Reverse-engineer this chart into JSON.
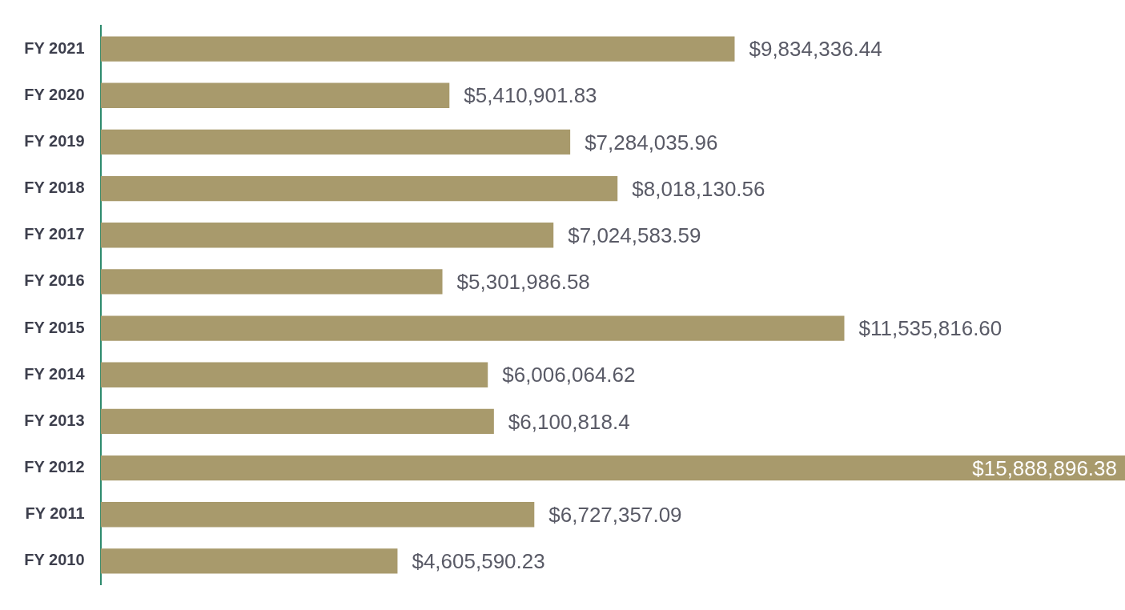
{
  "chart_data": {
    "type": "bar",
    "orientation": "horizontal",
    "categories": [
      "FY 2021",
      "FY 2020",
      "FY 2019",
      "FY 2018",
      "FY 2017",
      "FY 2016",
      "FY 2015",
      "FY 2014",
      "FY 2013",
      "FY 2012",
      "FY 2011",
      "FY 2010"
    ],
    "values": [
      9834336.44,
      5410901.83,
      7284035.96,
      8018130.56,
      7024583.59,
      5301986.58,
      11535816.6,
      6006064.62,
      6100818.4,
      15888896.38,
      6727357.09,
      4605590.23
    ],
    "value_labels": [
      "$9,834,336.44",
      "$5,410,901.83",
      "$7,284,035.96",
      "$8,018,130.56",
      "$7,024,583.59",
      "$5,301,986.58",
      "$11,535,816.60",
      "$6,006,064.62",
      "$6,100,818.4",
      "$15,888,896.38",
      "$6,727,357.09",
      "$4,605,590.23"
    ],
    "color": "#a89a6c",
    "tick_labels": "y",
    "legend": false
  }
}
